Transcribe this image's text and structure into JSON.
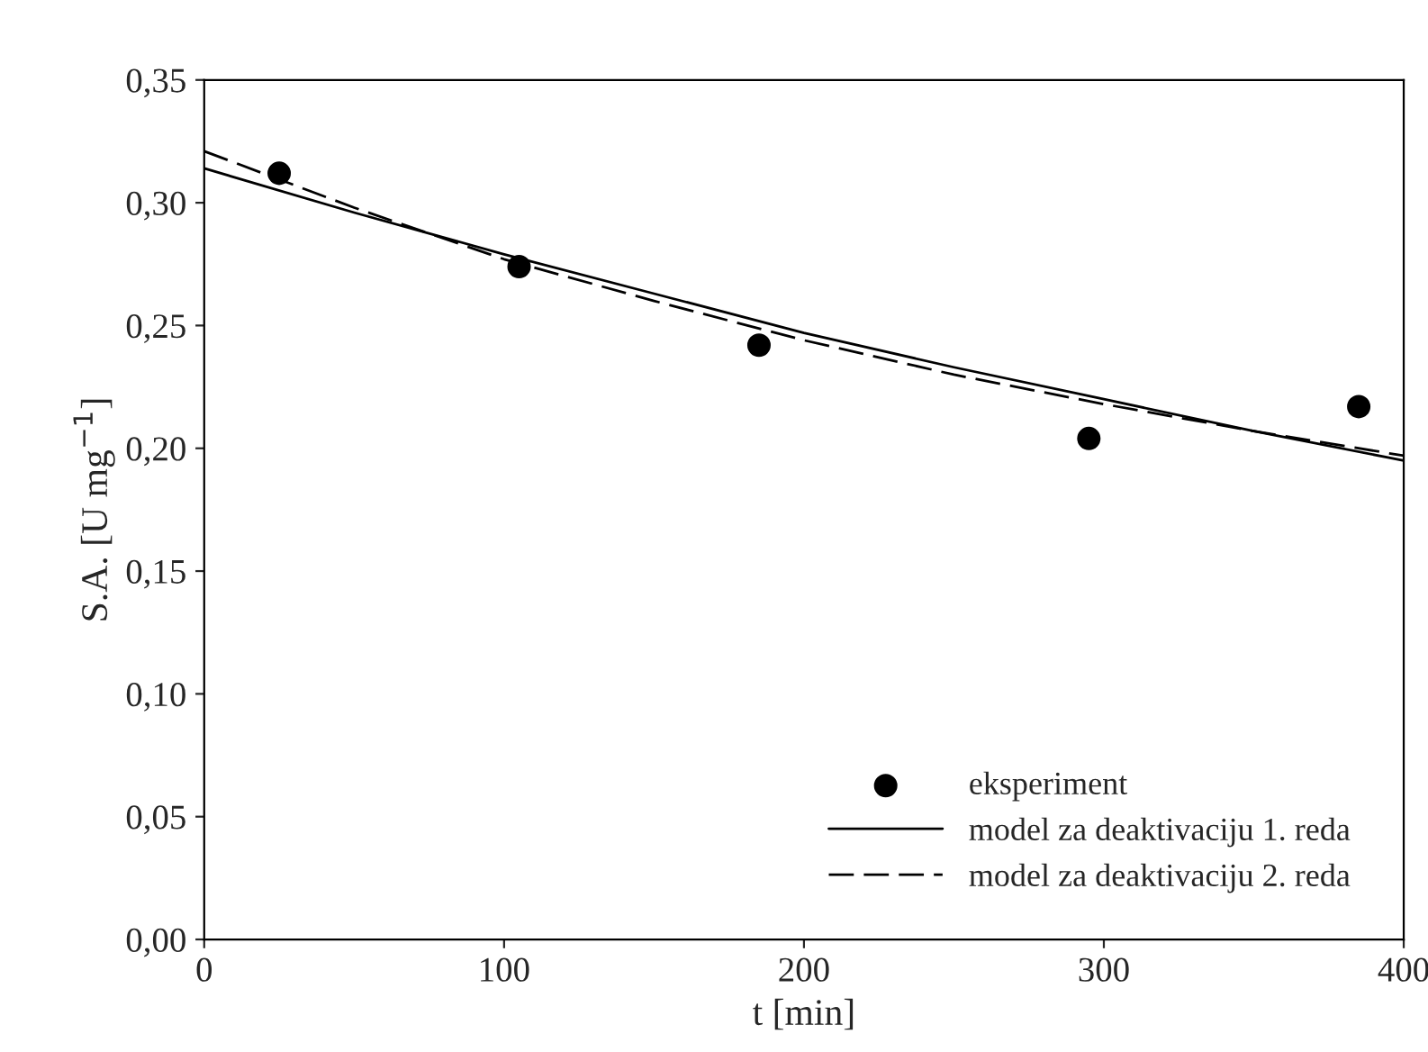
{
  "chart_data": {
    "type": "scatter",
    "xlabel": "t [min]",
    "ylabel": "S.A. [U mg$^{−1}$]",
    "xlim": [
      0,
      400
    ],
    "xticks": [
      0,
      100,
      200,
      300,
      400
    ],
    "ylim": [
      0,
      0.35
    ],
    "yticks": [
      {
        "value": 0,
        "label": "0,00"
      },
      {
        "value": 0.05,
        "label": "0,05"
      },
      {
        "value": 0.1,
        "label": "0,10"
      },
      {
        "value": 0.15,
        "label": "0,15"
      },
      {
        "value": 0.2,
        "label": "0,20"
      },
      {
        "value": 0.25,
        "label": "0,25"
      },
      {
        "value": 0.3,
        "label": "0,30"
      },
      {
        "value": 0.35,
        "label": "0,35"
      }
    ],
    "grid": false,
    "legend": "bottom right",
    "series": [
      {
        "name": "eksperiment",
        "color": "#000000",
        "marker": "circle",
        "x": [
          25,
          105,
          185,
          295,
          385
        ],
        "values": [
          0.312,
          0.274,
          0.242,
          0.204,
          0.217
        ]
      },
      {
        "name": "model za deaktivaciju 1. reda",
        "type": "line",
        "color": "#000000",
        "line_style": "solid",
        "marker": "none",
        "x": [
          0,
          50,
          100,
          150,
          200,
          250,
          300,
          350,
          400
        ],
        "values": [
          0.314,
          0.296,
          0.279,
          0.263,
          0.247,
          0.233,
          0.22,
          0.207,
          0.195
        ]
      },
      {
        "name": "model za deaktivaciju 2. reda",
        "type": "line",
        "color": "#000000",
        "line_style": "dashed",
        "marker": "none",
        "x": [
          0,
          50,
          100,
          150,
          200,
          250,
          300,
          350,
          400
        ],
        "values": [
          0.321,
          0.298,
          0.277,
          0.26,
          0.244,
          0.23,
          0.218,
          0.207,
          0.197
        ]
      }
    ]
  }
}
